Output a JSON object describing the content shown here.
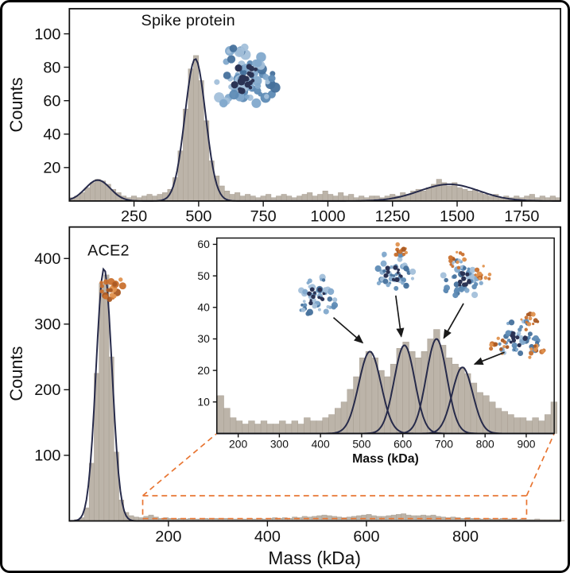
{
  "style": {
    "bar_fill": "#bcb4a9",
    "bar_edge": "#a79e92",
    "fit_color": "#262a4a",
    "zoom_color": "#e87430",
    "protein_blue": [
      "#82a9cc",
      "#5e8bb5",
      "#a3c0da",
      "#46719c"
    ],
    "protein_dark": "#2b3354",
    "protein_orange": [
      "#c9712f",
      "#aa5a23",
      "#e0924f"
    ]
  },
  "proteins": [
    {
      "id": "spike-structure-top",
      "type": "spike",
      "ace2_count": 0
    },
    {
      "id": "ace2-structure",
      "type": "ace2"
    },
    {
      "id": "inset-complex-1",
      "type": "spike",
      "ace2_count": 0
    },
    {
      "id": "inset-complex-2",
      "type": "spike-ace2",
      "ace2_count": 1
    },
    {
      "id": "inset-complex-3",
      "type": "spike-ace2",
      "ace2_count": 2
    },
    {
      "id": "inset-complex-4",
      "type": "spike-ace2",
      "ace2_count": 3
    }
  ],
  "chart_data": [
    {
      "id": "spike",
      "type": "bar",
      "title": "Spike protein",
      "xlabel": "",
      "ylabel": "Counts",
      "xlim": [
        0,
        1900
      ],
      "ylim": [
        0,
        115
      ],
      "xticks": [
        250,
        500,
        750,
        1000,
        1250,
        1500,
        1750
      ],
      "yticks": [
        20,
        40,
        60,
        80,
        100
      ],
      "bin_start": 0,
      "bin_width": 20,
      "counts": [
        2,
        3,
        5,
        8,
        11,
        13,
        12,
        10,
        7,
        5,
        3,
        2,
        3,
        2,
        3,
        4,
        3,
        4,
        5,
        7,
        14,
        30,
        55,
        79,
        87,
        72,
        48,
        24,
        15,
        9,
        6,
        4,
        5,
        3,
        4,
        3,
        2,
        3,
        4,
        2,
        3,
        4,
        3,
        2,
        3,
        4,
        5,
        3,
        4,
        6,
        4,
        3,
        5,
        3,
        4,
        2,
        3,
        2,
        3,
        3,
        2,
        3,
        4,
        3,
        5,
        4,
        6,
        7,
        6,
        8,
        10,
        13,
        11,
        9,
        11,
        8,
        7,
        6,
        7,
        5,
        4,
        3,
        4,
        2,
        3,
        2,
        3,
        2,
        3,
        4,
        2,
        3,
        2,
        3,
        2
      ],
      "fit_peaks": [
        {
          "a": 12.5,
          "mu": 110,
          "s": 48
        },
        {
          "a": 85,
          "mu": 487,
          "s": 40
        },
        {
          "a": 10,
          "mu": 1470,
          "s": 115
        }
      ],
      "separate_fits": false
    },
    {
      "id": "ace2",
      "type": "bar",
      "title": "ACE2",
      "xlabel": "Mass (kDa)",
      "ylabel": "Counts",
      "xlim": [
        0,
        992
      ],
      "ylim": [
        0,
        448
      ],
      "xticks": [
        200,
        400,
        600,
        800
      ],
      "yticks": [
        100,
        200,
        300,
        400
      ],
      "bin_start": 0,
      "bin_width": 10,
      "counts": [
        1,
        2,
        5,
        20,
        88,
        225,
        362,
        375,
        250,
        105,
        32,
        13,
        8,
        6,
        5,
        7,
        9,
        6,
        4,
        5,
        4,
        3,
        4,
        3,
        4,
        3,
        3,
        4,
        3,
        4,
        3,
        4,
        3,
        3,
        4,
        3,
        4,
        3,
        4,
        3,
        4,
        5,
        4,
        5,
        4,
        6,
        5,
        7,
        6,
        7,
        8,
        9,
        8,
        7,
        6,
        5,
        6,
        7,
        8,
        9,
        10,
        8,
        7,
        7,
        8,
        9,
        10,
        11,
        9,
        8,
        8,
        9,
        8,
        9,
        7,
        6,
        5,
        6,
        5,
        4,
        5,
        4,
        4,
        3,
        4,
        3,
        3,
        4,
        3,
        3,
        2,
        3,
        2,
        2,
        3,
        2,
        2,
        2,
        2,
        1
      ],
      "fit_peaks": [
        {
          "a": 385,
          "mu": 70,
          "s": 16
        }
      ],
      "separate_fits": false
    },
    {
      "id": "inset",
      "type": "bar",
      "title": "",
      "xlabel": "Mass (kDa)",
      "ylabel": "",
      "xlim": [
        148,
        968
      ],
      "ylim": [
        0,
        62
      ],
      "xticks": [
        200,
        300,
        400,
        500,
        600,
        700,
        800,
        900
      ],
      "yticks": [
        10,
        20,
        30,
        40,
        50,
        60
      ],
      "bin_start": 150,
      "bin_width": 15,
      "counts": [
        12,
        8,
        5,
        4,
        3,
        4,
        3,
        4,
        3,
        3,
        4,
        3,
        4,
        3,
        5,
        4,
        4,
        5,
        6,
        8,
        10,
        14,
        18,
        24,
        26,
        24,
        20,
        18,
        22,
        27,
        29,
        26,
        24,
        26,
        30,
        33,
        28,
        24,
        22,
        21,
        19,
        16,
        13,
        12,
        10,
        8,
        7,
        6,
        5,
        5,
        4,
        5,
        4,
        6,
        10
      ],
      "fit_peaks": [
        {
          "a": 26,
          "mu": 520,
          "s": 27
        },
        {
          "a": 28,
          "mu": 604,
          "s": 25
        },
        {
          "a": 30,
          "mu": 682,
          "s": 25
        },
        {
          "a": 21,
          "mu": 745,
          "s": 25
        }
      ],
      "separate_fits": true
    }
  ]
}
